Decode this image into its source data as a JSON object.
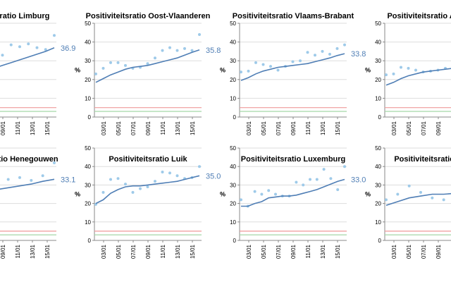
{
  "colors": {
    "accent": "#4f7eb5",
    "dots": "#9ecae9",
    "axis": "#888888",
    "grid": "#dddddd",
    "red_line": "#ef9a9a",
    "green_line": "#a5d6a7"
  },
  "chart_data": [
    {
      "type": "line",
      "title": "Positiviteitsratio Limburg",
      "ylabel": "%",
      "ylim": [
        0,
        50
      ],
      "yticks": [
        0,
        10,
        20,
        30,
        40,
        50
      ],
      "xticks": [
        "03/01",
        "05/01",
        "07/01",
        "09/01",
        "11/01",
        "13/01",
        "15/01"
      ],
      "dots": [
        18,
        26,
        29,
        24,
        27,
        28,
        33,
        38.5,
        37.5,
        39,
        37,
        36,
        43.5
      ],
      "trend": [
        17,
        19,
        21,
        22.5,
        24,
        26,
        27.5,
        29,
        30.5,
        32,
        33.5,
        35,
        36.9
      ],
      "ref_lines": [
        5,
        3
      ],
      "end_label": "36.9"
    },
    {
      "type": "line",
      "title": "Positiviteitsratio Oost-Vlaanderen",
      "ylabel": "%",
      "ylim": [
        0,
        50
      ],
      "yticks": [
        0,
        10,
        20,
        30,
        40,
        50
      ],
      "xticks": [
        "03/01",
        "05/01",
        "07/01",
        "09/01",
        "11/01",
        "13/01",
        "15/01"
      ],
      "dots": [
        23,
        26,
        29,
        29,
        27.5,
        26,
        26.5,
        28.5,
        31.5,
        35.5,
        37,
        35.5,
        36.5,
        35.5,
        44
      ],
      "trend": [
        18.5,
        20.5,
        22.5,
        24,
        25.5,
        26.5,
        27,
        27.5,
        28.5,
        29.5,
        30.5,
        31.5,
        33,
        34.5,
        35.8
      ],
      "ref_lines": [
        5,
        3
      ],
      "end_label": "35.8"
    },
    {
      "type": "line",
      "title": "Positiviteitsratio Vlaams-Brabant",
      "ylabel": "%",
      "ylim": [
        0,
        50
      ],
      "yticks": [
        0,
        10,
        20,
        30,
        40,
        50
      ],
      "xticks": [
        "03/01",
        "05/01",
        "07/01",
        "09/01",
        "11/01",
        "13/01",
        "15/01"
      ],
      "dots": [
        24,
        24.5,
        29,
        28,
        27,
        25,
        27,
        29.5,
        30,
        34.5,
        33,
        35,
        33.5,
        36.5,
        38.5
      ],
      "trend": [
        19.5,
        21,
        23,
        24.5,
        25.5,
        26.5,
        27,
        27.5,
        28,
        28.5,
        29.5,
        30.5,
        31.5,
        32.8,
        33.8
      ],
      "ref_lines": [
        5,
        3
      ],
      "end_label": "33.8"
    },
    {
      "type": "line",
      "title": "Positiviteitsratio Antwerpen",
      "ylabel": "%",
      "ylim": [
        0,
        50
      ],
      "yticks": [
        0,
        10,
        20,
        30,
        40,
        50
      ],
      "xticks": [
        "03/01",
        "05/01",
        "07/01",
        "09/01",
        "11/01",
        "13/01",
        "15/01"
      ],
      "dots": [
        22.5,
        23,
        26.5,
        26,
        25,
        24,
        24.5,
        25,
        26,
        27,
        28,
        29,
        30,
        31,
        32
      ],
      "trend": [
        17,
        18.5,
        20.5,
        22,
        23,
        24,
        24.5,
        25,
        25.5,
        26,
        26.5,
        27,
        27.5,
        28,
        29
      ],
      "ref_lines": [
        5,
        3
      ],
      "end_label": ""
    },
    {
      "type": "line",
      "title": "Positiviteitsratio Henegouwen",
      "ylabel": "%",
      "ylim": [
        0,
        50
      ],
      "yticks": [
        0,
        10,
        20,
        30,
        40,
        50
      ],
      "xticks": [
        "03/01",
        "05/01",
        "07/01",
        "09/01",
        "11/01",
        "13/01",
        "15/01"
      ],
      "dots": [
        20,
        24,
        30,
        33,
        34,
        33,
        34,
        32.5,
        35,
        42
      ],
      "trend": [
        18,
        21,
        24,
        26,
        27.5,
        28.5,
        29.5,
        30.5,
        32,
        33.1
      ],
      "ref_lines": [
        5,
        3
      ],
      "end_label": "33.1"
    },
    {
      "type": "line",
      "title": "Positiviteitsratio Luik",
      "ylabel": "%",
      "ylim": [
        0,
        50
      ],
      "yticks": [
        0,
        10,
        20,
        30,
        40,
        50
      ],
      "xticks": [
        "03/01",
        "05/01",
        "07/01",
        "09/01",
        "11/01",
        "13/01",
        "15/01"
      ],
      "dots": [
        19.5,
        26,
        33,
        33.5,
        30.5,
        26,
        28,
        29,
        32,
        37,
        36.5,
        35,
        33.5,
        34,
        40
      ],
      "trend": [
        20,
        22,
        25.5,
        27.5,
        29,
        29.5,
        29.5,
        30,
        30.5,
        31,
        31.5,
        32,
        33,
        34,
        35
      ],
      "ref_lines": [
        5,
        3
      ],
      "end_label": "35.0"
    },
    {
      "type": "line",
      "title": "Positiviteitsratio Luxemburg",
      "ylabel": "%",
      "ylim": [
        0,
        50
      ],
      "yticks": [
        0,
        10,
        20,
        30,
        40,
        50
      ],
      "xticks": [
        "03/01",
        "05/01",
        "07/01",
        "09/01",
        "11/01",
        "13/01",
        "15/01"
      ],
      "dots": [
        22,
        18.5,
        26.5,
        25,
        27,
        25,
        24,
        24,
        31.5,
        30,
        33,
        33,
        38.5,
        33.5,
        27.5,
        40
      ],
      "trend": [
        18.5,
        18.5,
        20,
        21,
        23,
        23.5,
        24,
        24,
        24.5,
        25.5,
        26.5,
        27.5,
        29,
        30.5,
        32,
        33
      ],
      "ref_lines": [
        5,
        3
      ],
      "end_label": "33.0"
    },
    {
      "type": "line",
      "title": "Positiviteitsratio Namen",
      "ylabel": "%",
      "ylim": [
        0,
        50
      ],
      "yticks": [
        0,
        10,
        20,
        30,
        40,
        50
      ],
      "xticks": [
        "03/01",
        "05/01",
        "07/01",
        "09/01",
        "11/01",
        "13/01",
        "15/01"
      ],
      "dots": [
        22,
        25,
        29.5,
        26,
        23,
        22,
        24,
        25,
        27,
        28
      ],
      "trend": [
        19,
        21,
        23,
        24,
        25,
        25,
        25.5,
        26,
        27,
        28
      ],
      "ref_lines": [
        5,
        3
      ],
      "end_label": ""
    }
  ]
}
